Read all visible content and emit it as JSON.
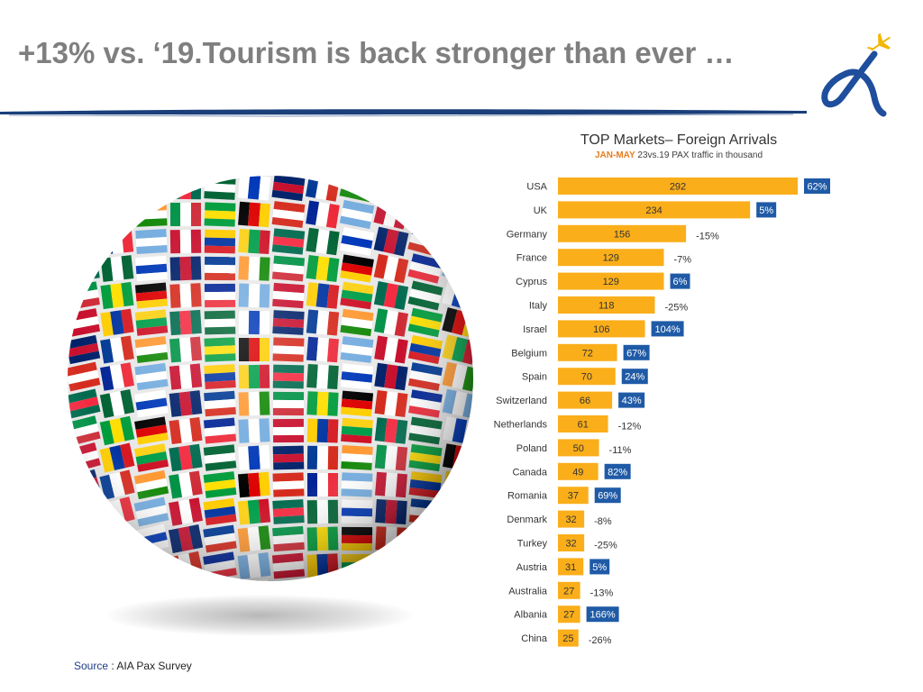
{
  "slide": {
    "title": "+13% vs. ‘19.Tourism is back stronger than ever …",
    "source_label": "Source",
    "source_sep": " : ",
    "source_text": "AIA Pax Survey"
  },
  "colors": {
    "bar": "#FAAE1A",
    "positive_badge": "#1F5AA6",
    "title_gray": "#7F7F7F",
    "rule_blue": "#1A3F7A",
    "subtitle_orange": "#E67E22"
  },
  "icons": {
    "logo": "alpha-airplane-logo",
    "globe": "flags-globe-image"
  },
  "chart_data": {
    "type": "bar",
    "orientation": "horizontal",
    "title": "TOP Markets– Foreign Arrivals",
    "subtitle_period": "JAN-MAY",
    "subtitle_text": " 23vs.19 PAX traffic in thousand",
    "xlim": [
      0,
      292
    ],
    "categories": [
      "USA",
      "UK",
      "Germany",
      "France",
      "Cyprus",
      "Italy",
      "Israel",
      "Belgium",
      "Spain",
      "Switzerland",
      "Netherlands",
      "Poland",
      "Canada",
      "Romania",
      "Denmark",
      "Turkey",
      "Austria",
      "Australia",
      "Albania",
      "China"
    ],
    "values": [
      292,
      234,
      156,
      129,
      129,
      118,
      106,
      72,
      70,
      66,
      61,
      50,
      49,
      37,
      32,
      32,
      31,
      27,
      27,
      25
    ],
    "value_labels": [
      "292",
      "234",
      "156",
      "129",
      "129",
      "118",
      "106",
      "72",
      "70",
      "66",
      "61",
      "50",
      "49",
      "37",
      "32",
      "32",
      "31",
      "27",
      "27",
      "25"
    ],
    "change_labels": [
      "62%",
      "5%",
      "-15%",
      "-7%",
      "6%",
      "-25%",
      "104%",
      "67%",
      "24%",
      "43%",
      "-12%",
      "-11%",
      "82%",
      "69%",
      "-8%",
      "-25%",
      "5%",
      "-13%",
      "166%",
      "-26%"
    ],
    "change_positive": [
      true,
      true,
      false,
      false,
      true,
      false,
      true,
      true,
      true,
      true,
      false,
      false,
      true,
      true,
      false,
      false,
      true,
      false,
      true,
      false
    ]
  }
}
